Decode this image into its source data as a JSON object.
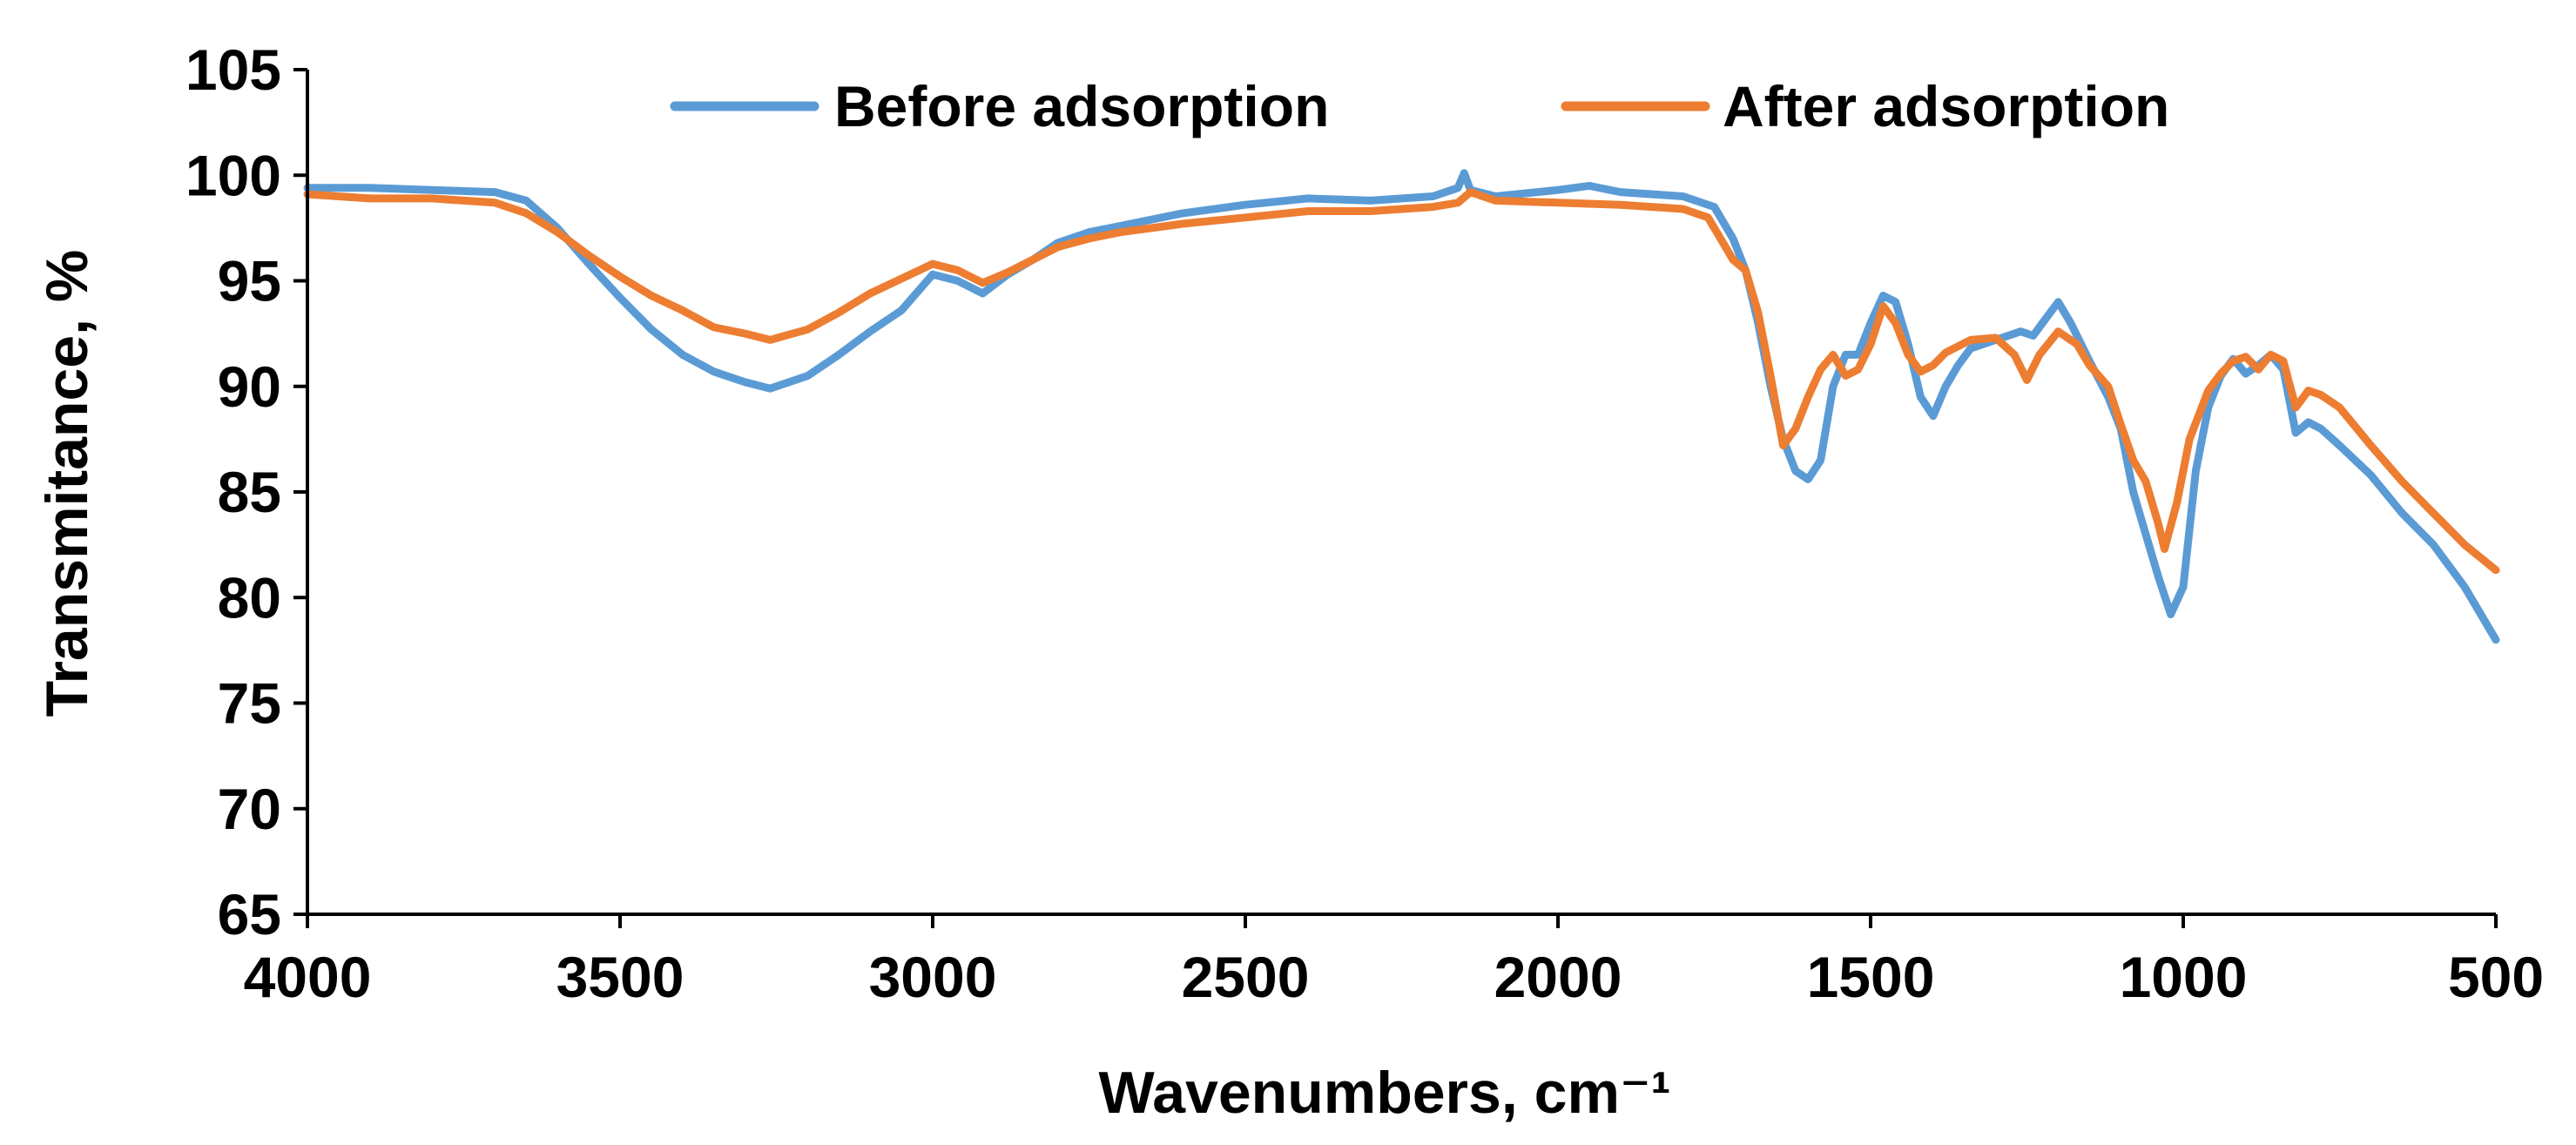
{
  "chart_data": {
    "type": "line",
    "title": "",
    "xlabel": "Wavenumbers, cm⁻¹",
    "ylabel": "Transmitance, %",
    "xlim": [
      4000,
      500
    ],
    "ylim": [
      65,
      105
    ],
    "x_ticks": [
      4000,
      3500,
      3000,
      2500,
      2000,
      1500,
      1000,
      500
    ],
    "y_ticks": [
      65,
      70,
      75,
      80,
      85,
      90,
      95,
      100,
      105
    ],
    "grid": false,
    "legend_position": "top",
    "series": [
      {
        "name": "Before adsorption",
        "color": "#5B9BD5",
        "points": [
          [
            4000,
            99.4
          ],
          [
            3900,
            99.4
          ],
          [
            3800,
            99.3
          ],
          [
            3700,
            99.2
          ],
          [
            3650,
            98.8
          ],
          [
            3600,
            97.5
          ],
          [
            3550,
            95.8
          ],
          [
            3500,
            94.2
          ],
          [
            3450,
            92.7
          ],
          [
            3400,
            91.5
          ],
          [
            3350,
            90.7
          ],
          [
            3300,
            90.2
          ],
          [
            3260,
            89.9
          ],
          [
            3200,
            90.5
          ],
          [
            3150,
            91.5
          ],
          [
            3100,
            92.6
          ],
          [
            3050,
            93.6
          ],
          [
            3000,
            95.3
          ],
          [
            2960,
            95.0
          ],
          [
            2920,
            94.4
          ],
          [
            2880,
            95.3
          ],
          [
            2840,
            96.0
          ],
          [
            2800,
            96.8
          ],
          [
            2750,
            97.3
          ],
          [
            2700,
            97.6
          ],
          [
            2600,
            98.2
          ],
          [
            2500,
            98.6
          ],
          [
            2400,
            98.9
          ],
          [
            2300,
            98.8
          ],
          [
            2200,
            99.0
          ],
          [
            2160,
            99.4
          ],
          [
            2150,
            100.1
          ],
          [
            2140,
            99.3
          ],
          [
            2100,
            99.0
          ],
          [
            2000,
            99.3
          ],
          [
            1950,
            99.5
          ],
          [
            1900,
            99.2
          ],
          [
            1800,
            99.0
          ],
          [
            1750,
            98.5
          ],
          [
            1720,
            97.0
          ],
          [
            1700,
            95.5
          ],
          [
            1680,
            93.0
          ],
          [
            1660,
            90.0
          ],
          [
            1640,
            87.5
          ],
          [
            1620,
            86.0
          ],
          [
            1600,
            85.6
          ],
          [
            1580,
            86.5
          ],
          [
            1560,
            90.0
          ],
          [
            1540,
            91.5
          ],
          [
            1520,
            91.5
          ],
          [
            1500,
            93.0
          ],
          [
            1480,
            94.3
          ],
          [
            1460,
            94.0
          ],
          [
            1440,
            92.0
          ],
          [
            1420,
            89.5
          ],
          [
            1400,
            88.6
          ],
          [
            1380,
            90.0
          ],
          [
            1360,
            91.0
          ],
          [
            1340,
            91.8
          ],
          [
            1300,
            92.2
          ],
          [
            1260,
            92.6
          ],
          [
            1240,
            92.4
          ],
          [
            1220,
            93.2
          ],
          [
            1200,
            94.0
          ],
          [
            1180,
            93.0
          ],
          [
            1150,
            91.2
          ],
          [
            1120,
            89.5
          ],
          [
            1100,
            88.0
          ],
          [
            1080,
            85.0
          ],
          [
            1060,
            83.0
          ],
          [
            1040,
            81.0
          ],
          [
            1020,
            79.2
          ],
          [
            1000,
            80.5
          ],
          [
            980,
            86.0
          ],
          [
            960,
            89.0
          ],
          [
            940,
            90.5
          ],
          [
            920,
            91.3
          ],
          [
            900,
            90.6
          ],
          [
            880,
            91.0
          ],
          [
            860,
            91.5
          ],
          [
            840,
            90.8
          ],
          [
            820,
            87.8
          ],
          [
            800,
            88.3
          ],
          [
            780,
            88.0
          ],
          [
            750,
            87.2
          ],
          [
            700,
            85.8
          ],
          [
            650,
            84.0
          ],
          [
            600,
            82.5
          ],
          [
            550,
            80.5
          ],
          [
            500,
            78.0
          ]
        ]
      },
      {
        "name": "After adsorption",
        "color": "#ED7D31",
        "points": [
          [
            4000,
            99.1
          ],
          [
            3900,
            98.9
          ],
          [
            3800,
            98.9
          ],
          [
            3700,
            98.7
          ],
          [
            3650,
            98.2
          ],
          [
            3600,
            97.3
          ],
          [
            3550,
            96.2
          ],
          [
            3500,
            95.2
          ],
          [
            3450,
            94.3
          ],
          [
            3400,
            93.6
          ],
          [
            3350,
            92.8
          ],
          [
            3300,
            92.5
          ],
          [
            3260,
            92.2
          ],
          [
            3200,
            92.7
          ],
          [
            3150,
            93.5
          ],
          [
            3100,
            94.4
          ],
          [
            3050,
            95.1
          ],
          [
            3000,
            95.8
          ],
          [
            2960,
            95.5
          ],
          [
            2920,
            94.9
          ],
          [
            2880,
            95.4
          ],
          [
            2840,
            96.0
          ],
          [
            2800,
            96.6
          ],
          [
            2750,
            97.0
          ],
          [
            2700,
            97.3
          ],
          [
            2600,
            97.7
          ],
          [
            2500,
            98.0
          ],
          [
            2400,
            98.3
          ],
          [
            2300,
            98.3
          ],
          [
            2200,
            98.5
          ],
          [
            2160,
            98.7
          ],
          [
            2140,
            99.2
          ],
          [
            2100,
            98.8
          ],
          [
            2000,
            98.7
          ],
          [
            1900,
            98.6
          ],
          [
            1800,
            98.4
          ],
          [
            1760,
            98.0
          ],
          [
            1740,
            97.0
          ],
          [
            1720,
            96.0
          ],
          [
            1700,
            95.5
          ],
          [
            1680,
            93.5
          ],
          [
            1660,
            90.5
          ],
          [
            1640,
            87.2
          ],
          [
            1620,
            88.0
          ],
          [
            1600,
            89.5
          ],
          [
            1580,
            90.8
          ],
          [
            1560,
            91.5
          ],
          [
            1540,
            90.5
          ],
          [
            1520,
            90.8
          ],
          [
            1500,
            92.0
          ],
          [
            1480,
            93.8
          ],
          [
            1460,
            93.0
          ],
          [
            1440,
            91.5
          ],
          [
            1420,
            90.7
          ],
          [
            1400,
            91.0
          ],
          [
            1380,
            91.6
          ],
          [
            1340,
            92.2
          ],
          [
            1300,
            92.3
          ],
          [
            1270,
            91.5
          ],
          [
            1250,
            90.3
          ],
          [
            1230,
            91.5
          ],
          [
            1200,
            92.6
          ],
          [
            1170,
            92.0
          ],
          [
            1150,
            91.0
          ],
          [
            1120,
            90.0
          ],
          [
            1100,
            88.2
          ],
          [
            1080,
            86.5
          ],
          [
            1060,
            85.5
          ],
          [
            1040,
            83.5
          ],
          [
            1030,
            82.3
          ],
          [
            1010,
            84.5
          ],
          [
            990,
            87.5
          ],
          [
            960,
            89.8
          ],
          [
            940,
            90.6
          ],
          [
            920,
            91.2
          ],
          [
            900,
            91.4
          ],
          [
            880,
            90.8
          ],
          [
            860,
            91.5
          ],
          [
            840,
            91.2
          ],
          [
            820,
            89.0
          ],
          [
            800,
            89.8
          ],
          [
            780,
            89.6
          ],
          [
            750,
            89.0
          ],
          [
            700,
            87.2
          ],
          [
            650,
            85.5
          ],
          [
            600,
            84.0
          ],
          [
            550,
            82.5
          ],
          [
            500,
            81.3
          ]
        ]
      }
    ]
  }
}
